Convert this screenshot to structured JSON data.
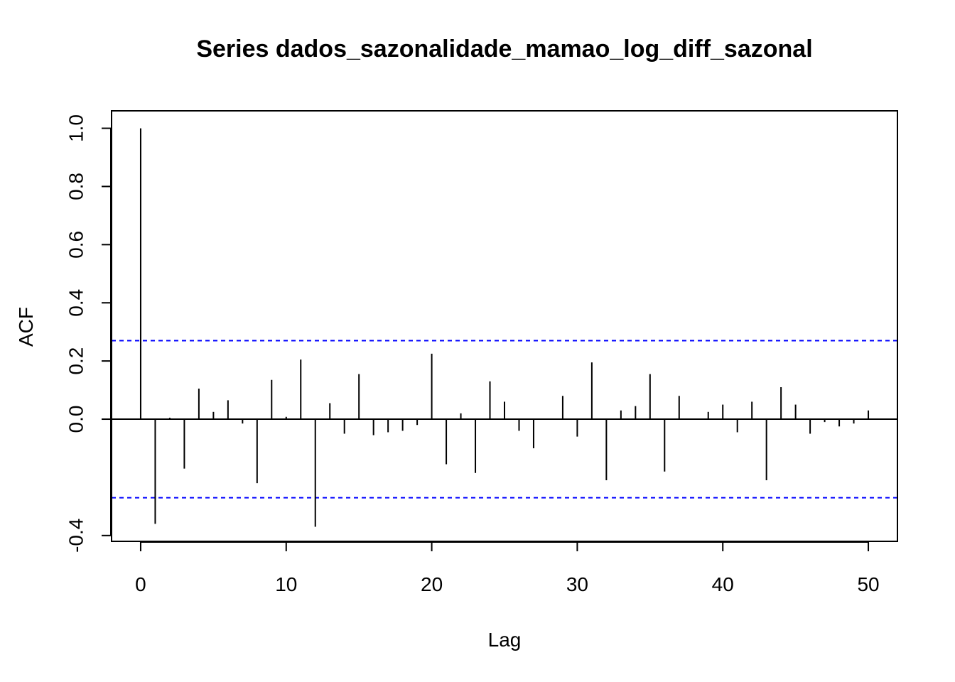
{
  "chart_data": {
    "type": "bar",
    "title": "Series  dados_sazonalidade_mamao_log_diff_sazonal",
    "xlabel": "Lag",
    "ylabel": "ACF",
    "xlim": [
      -2,
      52
    ],
    "ylim": [
      -0.42,
      1.06
    ],
    "x_ticks": [
      0,
      10,
      20,
      30,
      40,
      50
    ],
    "x_tick_labels": [
      "0",
      "10",
      "20",
      "30",
      "40",
      "50"
    ],
    "y_ticks": [
      -0.4,
      0.0,
      0.2,
      0.4,
      0.6,
      0.8,
      1.0
    ],
    "y_tick_labels": [
      "-0.4",
      "0.0",
      "0.2",
      "0.4",
      "0.6",
      "0.8",
      "1.0"
    ],
    "confidence_bound": 0.27,
    "colors": {
      "bars": "#000000",
      "confidence_lines": "#0000ff",
      "zero_line": "#000000"
    },
    "lags": [
      0,
      1,
      2,
      3,
      4,
      5,
      6,
      7,
      8,
      9,
      10,
      11,
      12,
      13,
      14,
      15,
      16,
      17,
      18,
      19,
      20,
      21,
      22,
      23,
      24,
      25,
      26,
      27,
      28,
      29,
      30,
      31,
      32,
      33,
      34,
      35,
      36,
      37,
      38,
      39,
      40,
      41,
      42,
      43,
      44,
      45,
      46,
      47,
      48,
      49,
      50
    ],
    "values": [
      1.0,
      -0.36,
      0.005,
      -0.17,
      0.105,
      0.025,
      0.065,
      -0.015,
      -0.22,
      0.135,
      0.008,
      0.205,
      -0.37,
      0.055,
      -0.05,
      0.155,
      -0.055,
      -0.045,
      -0.04,
      -0.02,
      0.225,
      -0.155,
      0.02,
      -0.185,
      0.13,
      0.06,
      -0.04,
      -0.1,
      0.0,
      0.08,
      -0.06,
      0.195,
      -0.21,
      0.03,
      0.045,
      0.155,
      -0.18,
      0.08,
      0.0,
      0.025,
      0.05,
      -0.045,
      0.06,
      -0.21,
      0.11,
      0.05,
      -0.05,
      -0.01,
      -0.025,
      -0.015,
      0.03
    ]
  }
}
